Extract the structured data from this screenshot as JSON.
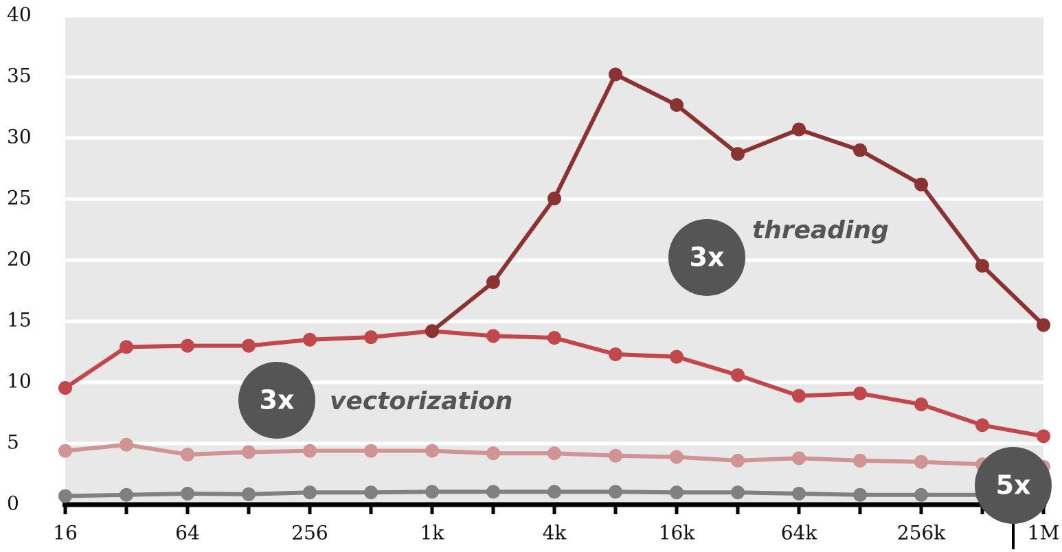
{
  "chart_data": {
    "type": "line",
    "categories": [
      "16",
      null,
      "64",
      null,
      "256",
      null,
      "1k",
      null,
      "4k",
      null,
      "16k",
      null,
      "64k",
      null,
      "256k",
      null,
      "1M"
    ],
    "series": [
      {
        "color": "#808080",
        "values": [
          0.7,
          0.8,
          0.9,
          0.85,
          1.0,
          1.0,
          1.05,
          1.05,
          1.05,
          1.05,
          1.0,
          1.0,
          0.9,
          0.8,
          0.8,
          0.8,
          0.75
        ]
      },
      {
        "color": "#d09494",
        "values": [
          4.4,
          4.9,
          4.1,
          4.3,
          4.4,
          4.4,
          4.4,
          4.2,
          4.2,
          4.0,
          3.9,
          3.6,
          3.8,
          3.6,
          3.5,
          3.3,
          3.1
        ]
      },
      {
        "color": "#c0474a",
        "values": [
          9.55,
          12.9,
          13.0,
          13.0,
          13.5,
          13.7,
          14.2,
          13.8,
          13.65,
          12.3,
          12.1,
          10.6,
          8.9,
          9.1,
          8.2,
          6.5,
          5.6
        ]
      },
      {
        "color": "#8b3232",
        "values": [
          null,
          null,
          null,
          null,
          null,
          null,
          14.2,
          18.2,
          25.05,
          35.2,
          32.7,
          28.7,
          30.7,
          29.0,
          26.2,
          19.55,
          14.7
        ]
      }
    ],
    "annotations": [
      "threading",
      "vectorization"
    ],
    "badges": [
      "3x",
      "3x",
      "5x"
    ],
    "ylim": [
      0,
      40
    ],
    "yticks": [
      0,
      5,
      10,
      15,
      20,
      25,
      30,
      35,
      40
    ],
    "grid": true
  }
}
